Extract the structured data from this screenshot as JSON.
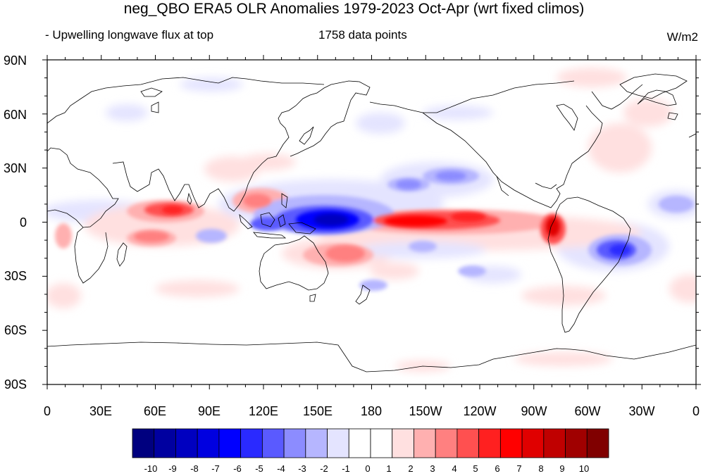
{
  "title": "neg_QBO ERA5 OLR Anomalies 1979-2023 Oct-Apr (wrt fixed climos)",
  "subtitle_left": "- Upwelling longwave flux at top",
  "subtitle_center": "1758 data points",
  "subtitle_right": "W/m2",
  "lat_labels": [
    "90N",
    "60N",
    "30N",
    "0",
    "30S",
    "60S",
    "90S"
  ],
  "lon_labels": [
    "0",
    "30E",
    "60E",
    "90E",
    "120E",
    "150E",
    "180",
    "150W",
    "120W",
    "90W",
    "60W",
    "30W",
    "0"
  ],
  "colorbar": {
    "labels": [
      "-10",
      "-9",
      "-8",
      "-7",
      "-6",
      "-5",
      "-4",
      "-3",
      "-2",
      "-1",
      "0",
      "1",
      "2",
      "3",
      "4",
      "5",
      "6",
      "7",
      "8",
      "9",
      "10"
    ],
    "colors": [
      "#00007f",
      "#0000a0",
      "#0000c0",
      "#0000e0",
      "#0000ff",
      "#2a2aff",
      "#5a5aff",
      "#8c8cff",
      "#b6b6ff",
      "#e4e4ff",
      "#ffffff",
      "#ffffff",
      "#ffe0e0",
      "#ffb0b0",
      "#ff8080",
      "#ff5050",
      "#ff2020",
      "#ff0000",
      "#e00000",
      "#c00000",
      "#a00000",
      "#800000"
    ]
  },
  "colors": {
    "land_outline": "#000000",
    "frame": "#000000"
  }
}
